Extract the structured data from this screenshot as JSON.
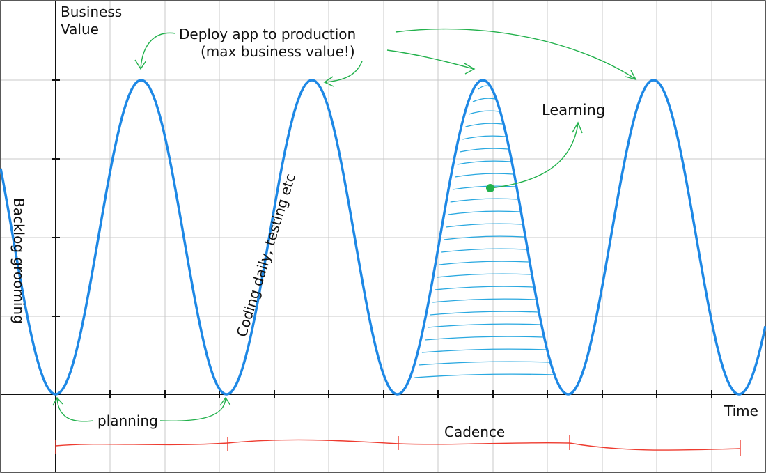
{
  "axes": {
    "y_label_line1": "Business",
    "y_label_line2": "Value",
    "x_label": "Time"
  },
  "annotations": {
    "deploy_line1": "Deploy app to production",
    "deploy_line2": "(max business value!)",
    "learning": "Learning",
    "planning": "planning",
    "cadence": "Cadence",
    "backlog": "Backlog grooming",
    "coding": "Coding daily, testing etc"
  },
  "colors": {
    "wave": "#1e88e5",
    "arrows": "#22b14c",
    "cadence": "#ee3b2f",
    "hatch": "#29a8e0",
    "grid": "#c8c8c8"
  }
}
